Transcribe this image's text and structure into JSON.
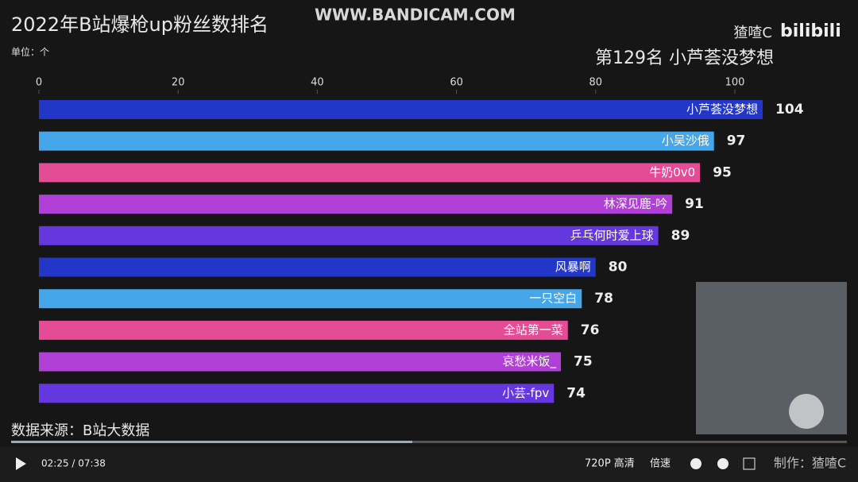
{
  "chart_data": {
    "type": "hbar",
    "title": "2022年B站爆枪up粉丝数排名",
    "unit_label": "单位：个",
    "subtitle": "第129名 小芦荟没梦想",
    "source": "数据来源：B站大数据",
    "categories": [
      "小芦荟没梦想",
      "小吴沙俄",
      "牛奶0v0",
      "林深见鹿-吟",
      "乒乓何时爱上球",
      "风暴啊",
      "一只空白",
      "全站第一菜",
      "哀愁米饭_",
      "小芸-fpv"
    ],
    "values": [
      104,
      97,
      95,
      91,
      89,
      80,
      78,
      76,
      75,
      74
    ],
    "colors": [
      "#2236c8",
      "#45a6ea",
      "#e44c96",
      "#b03fd6",
      "#6537de",
      "#2236c8",
      "#45a6ea",
      "#e44c96",
      "#b03fd6",
      "#6537de"
    ],
    "xlim": [
      0,
      118
    ],
    "xticks": [
      0,
      20,
      40,
      60,
      80,
      100
    ]
  },
  "overlay": {
    "watermark": "WWW.BANDICAM.COM",
    "author": "猹喳C",
    "logo": "bilibili"
  },
  "player": {
    "time": "02:25 / 07:38",
    "quality": "720P 高清",
    "speed": "倍速",
    "credit": "制作：猹喳C"
  }
}
